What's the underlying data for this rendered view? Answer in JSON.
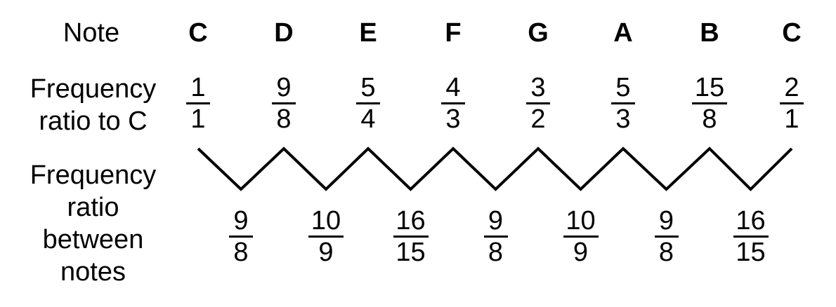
{
  "labels": {
    "note": "Note",
    "ratio_to_c": [
      "Frequency",
      "ratio to C"
    ],
    "ratio_between": [
      "Frequency",
      "ratio",
      "between",
      "notes"
    ]
  },
  "notes": [
    {
      "name": "C",
      "ratio": {
        "num": "1",
        "den": "1"
      }
    },
    {
      "name": "D",
      "ratio": {
        "num": "9",
        "den": "8"
      }
    },
    {
      "name": "E",
      "ratio": {
        "num": "5",
        "den": "4"
      }
    },
    {
      "name": "F",
      "ratio": {
        "num": "4",
        "den": "3"
      }
    },
    {
      "name": "G",
      "ratio": {
        "num": "3",
        "den": "2"
      }
    },
    {
      "name": "A",
      "ratio": {
        "num": "5",
        "den": "3"
      }
    },
    {
      "name": "B",
      "ratio": {
        "num": "15",
        "den": "8"
      }
    },
    {
      "name": "C",
      "ratio": {
        "num": "2",
        "den": "1"
      }
    }
  ],
  "intervals": [
    {
      "num": "9",
      "den": "8"
    },
    {
      "num": "10",
      "den": "9"
    },
    {
      "num": "16",
      "den": "15"
    },
    {
      "num": "9",
      "den": "8"
    },
    {
      "num": "10",
      "den": "9"
    },
    {
      "num": "9",
      "den": "8"
    },
    {
      "num": "16",
      "den": "15"
    }
  ]
}
